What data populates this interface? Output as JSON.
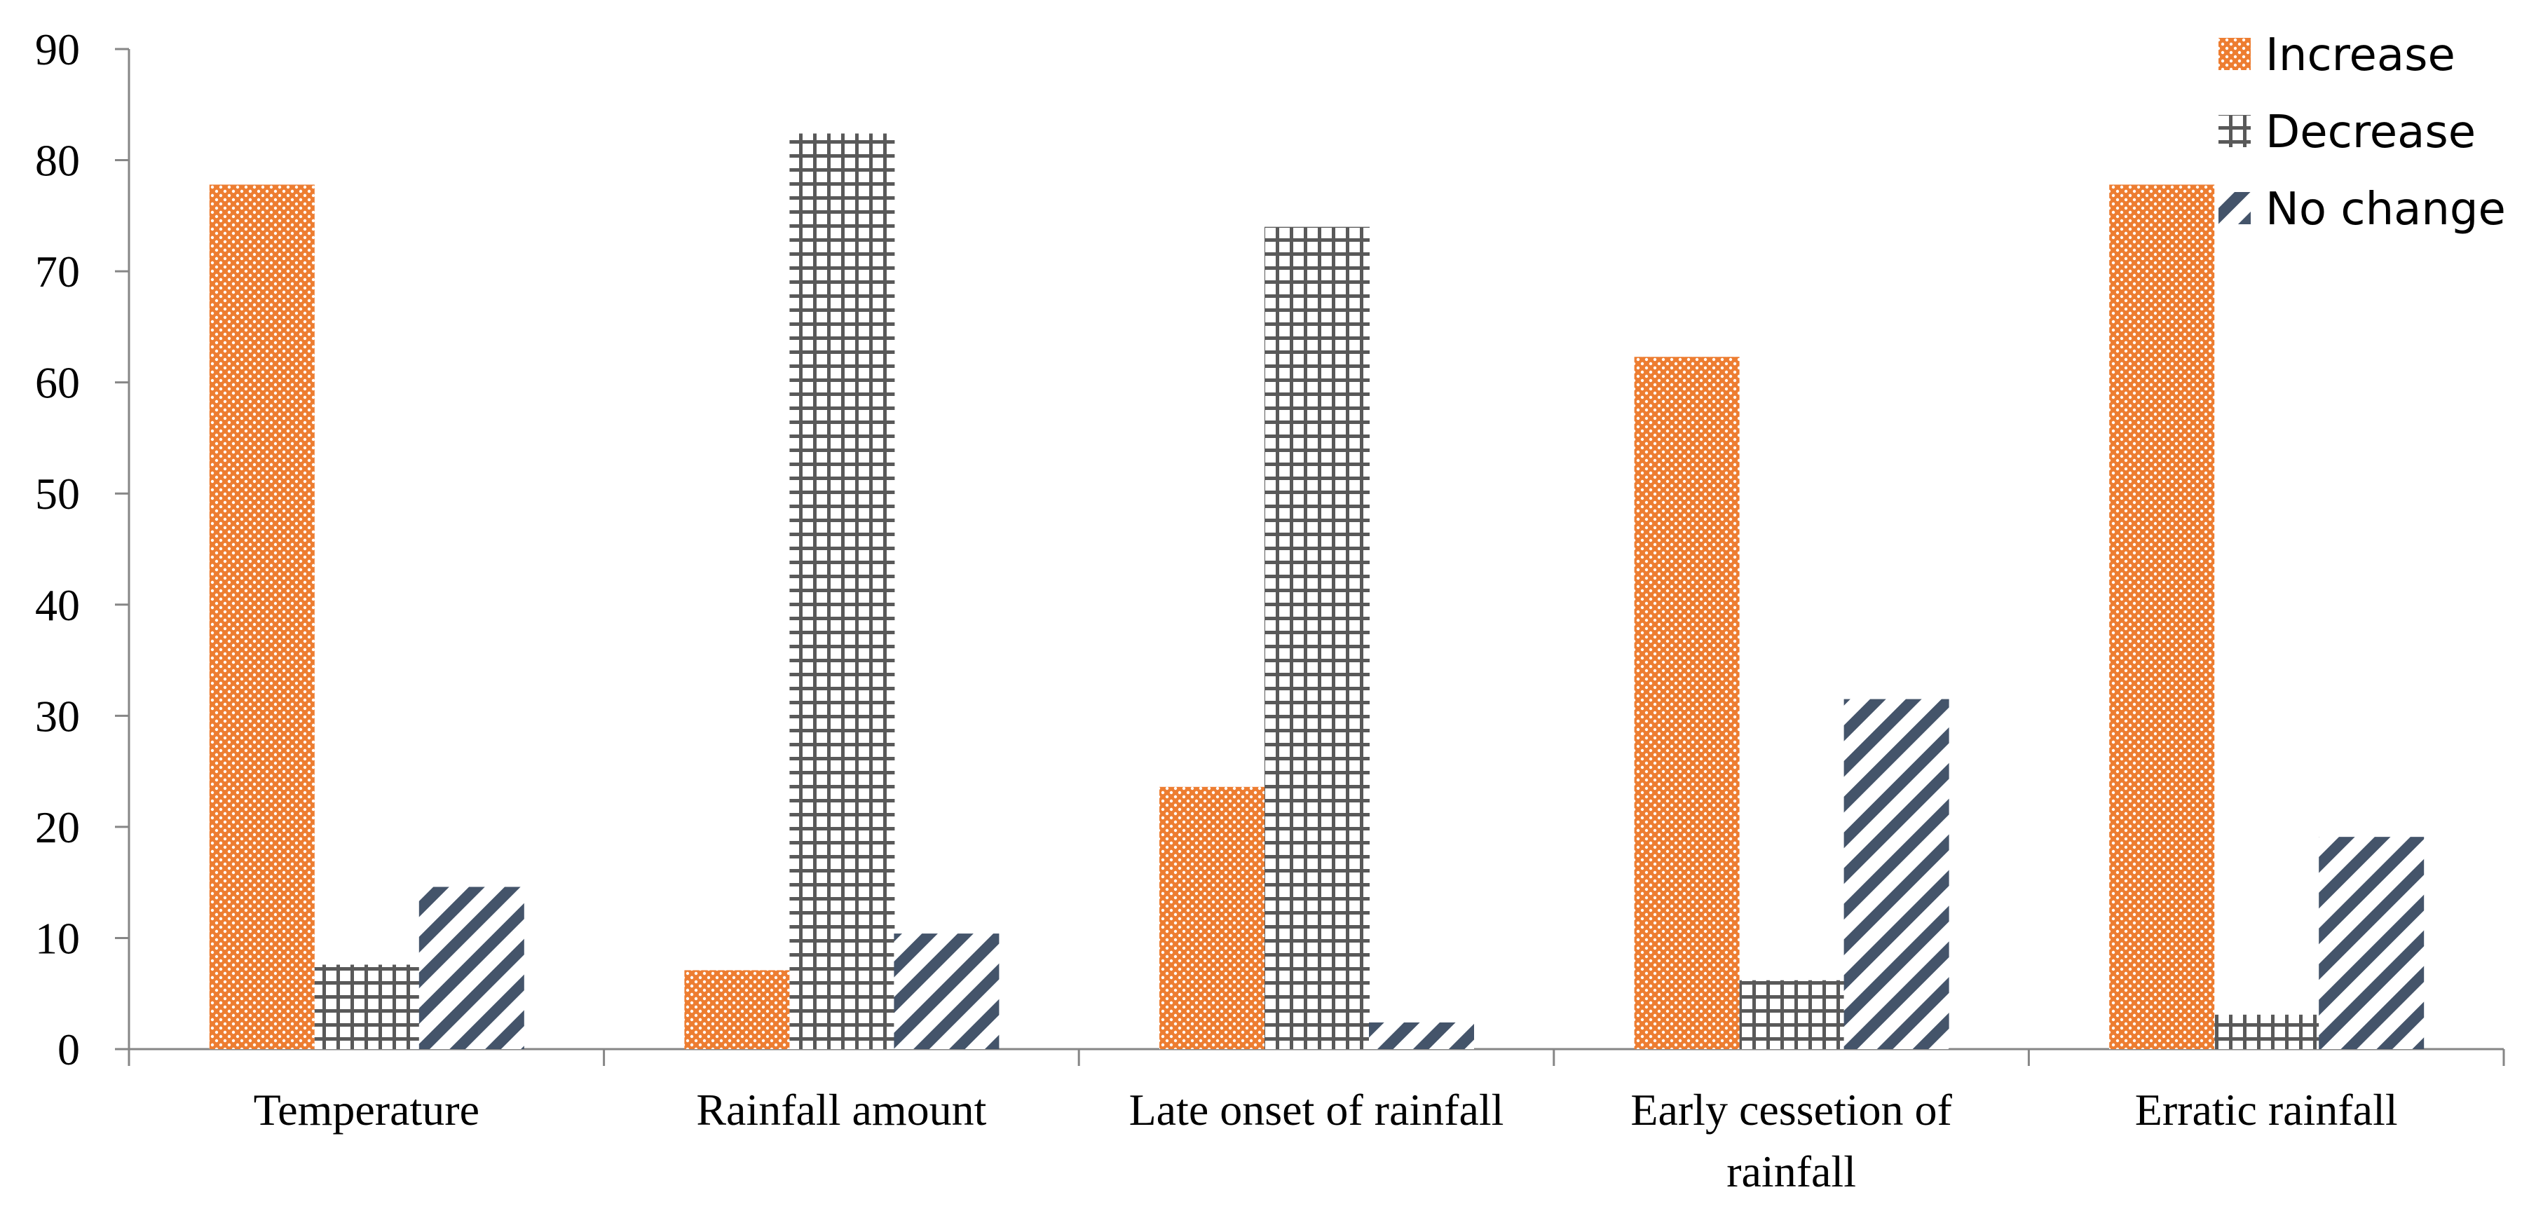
{
  "chart_data": {
    "type": "bar",
    "title": "",
    "xlabel": "",
    "ylabel": "",
    "ylim": [
      0,
      90
    ],
    "yticks": [
      0,
      10,
      20,
      30,
      40,
      50,
      60,
      70,
      80,
      90
    ],
    "ytick_labels": [
      "0",
      "10",
      "20",
      "30",
      "40",
      "50",
      "60",
      "70",
      "80",
      "90"
    ],
    "grid": false,
    "legend_position": "top-right",
    "categories": [
      [
        "Temperature"
      ],
      [
        "Rainfall amount"
      ],
      [
        "Late onset of rainfall"
      ],
      [
        "Early cessetion of",
        "rainfall"
      ],
      [
        "Erratic rainfall"
      ]
    ],
    "series": [
      {
        "name": "Increase",
        "pattern": "dots",
        "color": "#ed7d31",
        "values": [
          77.8,
          7.1,
          23.6,
          62.3,
          77.8
        ]
      },
      {
        "name": "Decrease",
        "pattern": "grid",
        "color": "#595959",
        "values": [
          7.6,
          82.4,
          74.0,
          6.2,
          3.1
        ]
      },
      {
        "name": "No change",
        "pattern": "diagonal",
        "color": "#44546a",
        "values": [
          14.6,
          10.4,
          2.4,
          31.5,
          19.1
        ]
      }
    ]
  }
}
